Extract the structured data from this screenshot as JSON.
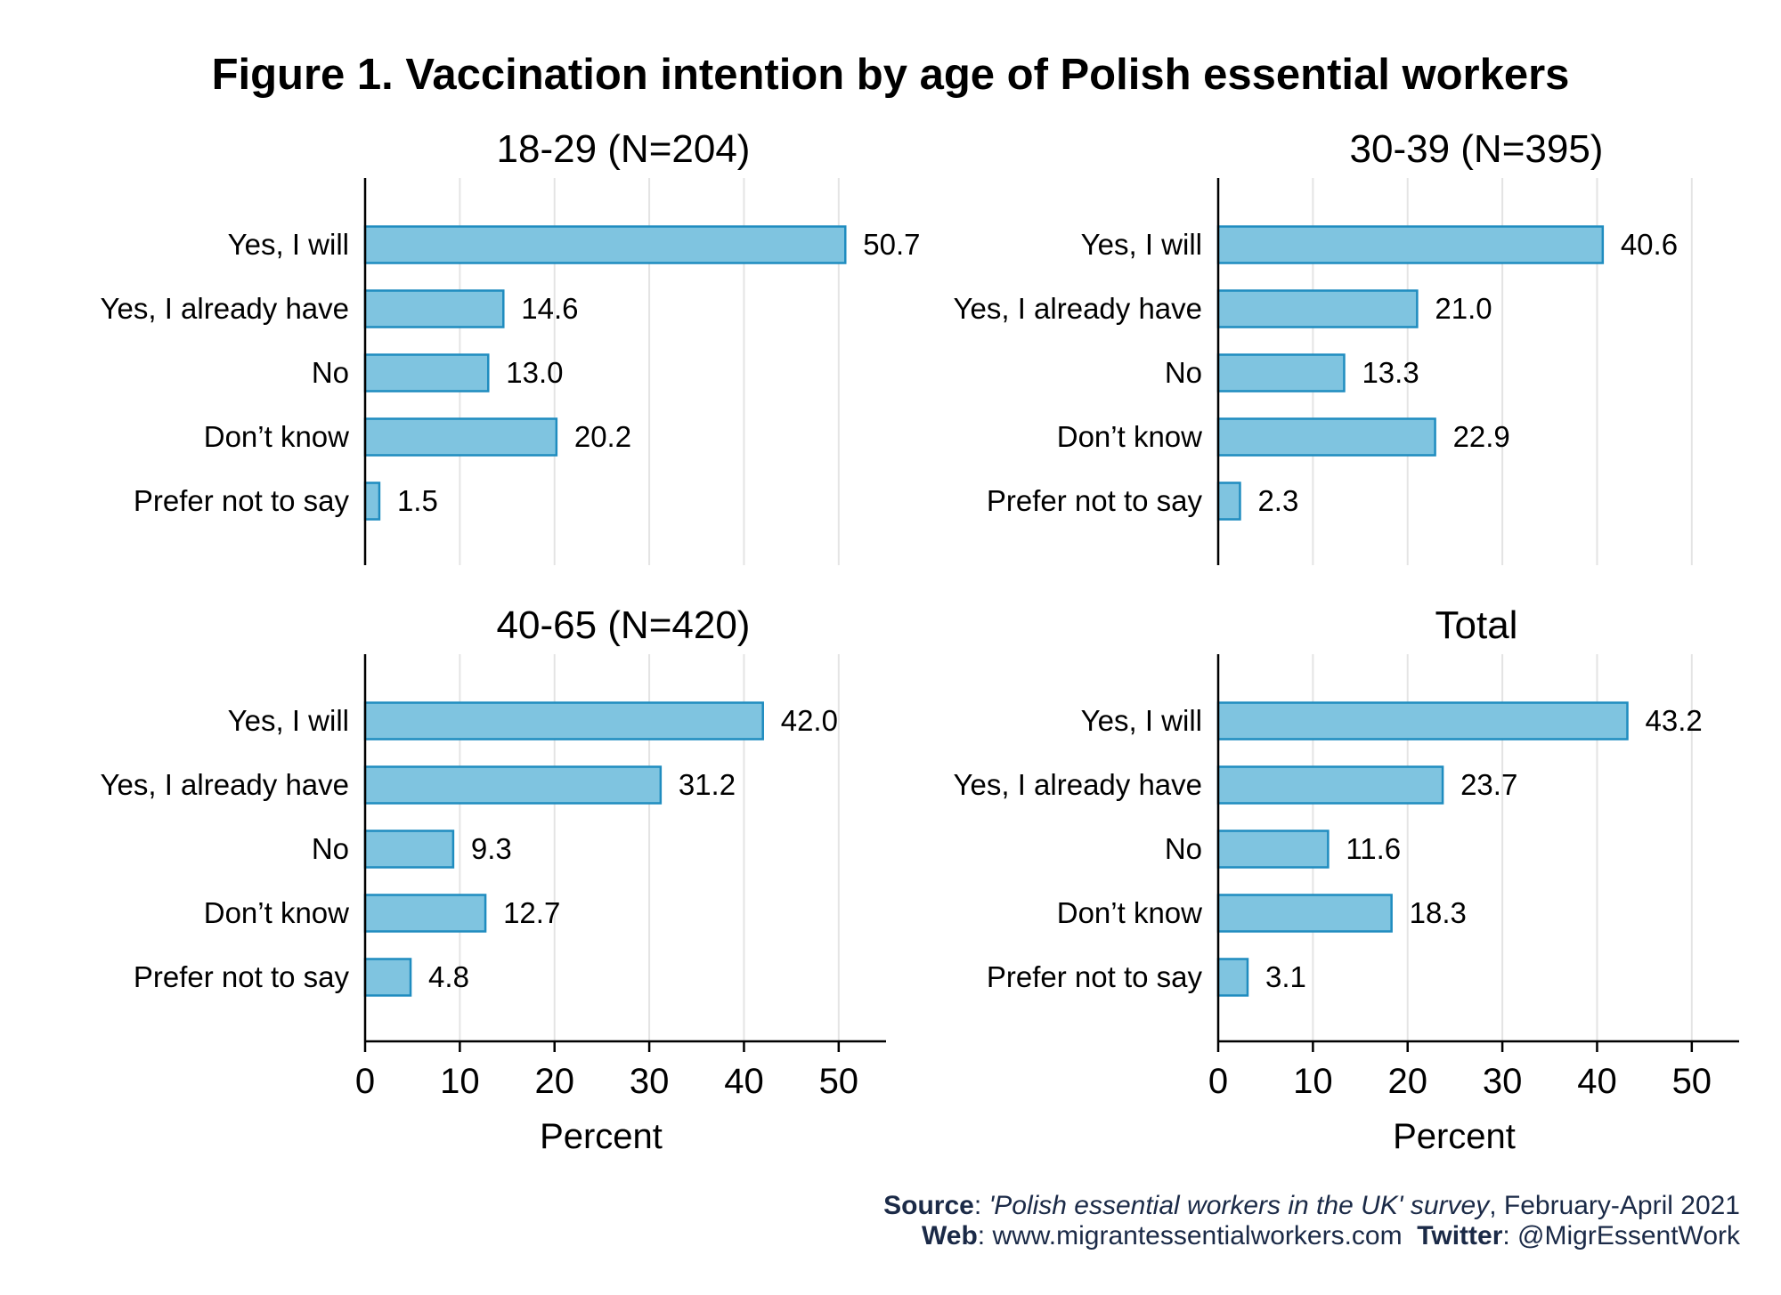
{
  "figure_title": "Figure 1. Vaccination intention by age of Polish essential workers",
  "colors": {
    "bar_fill": "#7fc4e0",
    "bar_stroke": "#1f8cbf",
    "grid": "#e4e4e4",
    "footer_text": "#1b2a47"
  },
  "chart_data": [
    {
      "type": "bar",
      "orientation": "horizontal",
      "title": "18-29 (N=204)",
      "categories": [
        "Yes, I will",
        "Yes, I already have",
        "No",
        "Don’t know",
        "Prefer not to say"
      ],
      "values": [
        50.7,
        14.6,
        13.0,
        20.2,
        1.5
      ],
      "value_labels": [
        "50.7",
        "14.6",
        "13.0",
        "20.2",
        "1.5"
      ],
      "xlim": [
        0,
        55
      ],
      "xticks": [
        0,
        10,
        20,
        30,
        40,
        50
      ],
      "xlabel": "",
      "show_x_axis": false
    },
    {
      "type": "bar",
      "orientation": "horizontal",
      "title": "30-39 (N=395)",
      "categories": [
        "Yes, I will",
        "Yes, I already have",
        "No",
        "Don’t know",
        "Prefer not to say"
      ],
      "values": [
        40.6,
        21.0,
        13.3,
        22.9,
        2.3
      ],
      "value_labels": [
        "40.6",
        "21.0",
        "13.3",
        "22.9",
        "2.3"
      ],
      "xlim": [
        0,
        55
      ],
      "xticks": [
        0,
        10,
        20,
        30,
        40,
        50
      ],
      "xlabel": "",
      "show_x_axis": false
    },
    {
      "type": "bar",
      "orientation": "horizontal",
      "title": "40-65 (N=420)",
      "categories": [
        "Yes, I will",
        "Yes, I already have",
        "No",
        "Don’t know",
        "Prefer not to say"
      ],
      "values": [
        42.0,
        31.2,
        9.3,
        12.7,
        4.8
      ],
      "value_labels": [
        "42.0",
        "31.2",
        "9.3",
        "12.7",
        "4.8"
      ],
      "xlim": [
        0,
        55
      ],
      "xticks": [
        0,
        10,
        20,
        30,
        40,
        50
      ],
      "xlabel": "Percent",
      "show_x_axis": true
    },
    {
      "type": "bar",
      "orientation": "horizontal",
      "title": "Total",
      "categories": [
        "Yes, I will",
        "Yes, I already have",
        "No",
        "Don’t know",
        "Prefer not to say"
      ],
      "values": [
        43.2,
        23.7,
        11.6,
        18.3,
        3.1
      ],
      "value_labels": [
        "43.2",
        "23.7",
        "11.6",
        "18.3",
        "3.1"
      ],
      "xlim": [
        0,
        55
      ],
      "xticks": [
        0,
        10,
        20,
        30,
        40,
        50
      ],
      "xlabel": "Percent",
      "show_x_axis": true
    }
  ],
  "footer": {
    "source_label": "Source",
    "source_title": "'Polish essential workers in the UK' survey",
    "source_date": ", February-April 2021",
    "web_label": "Web",
    "web_value": ": www.migrantessentialworkers.com",
    "twitter_label": "Twitter",
    "twitter_value": ": @MigrEssentWork"
  }
}
